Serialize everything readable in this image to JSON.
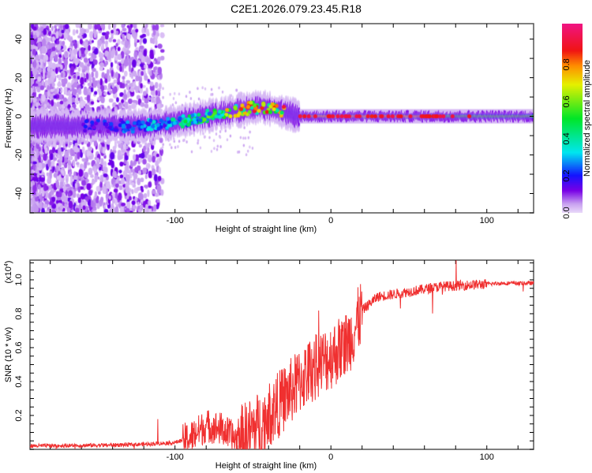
{
  "title": "C2E1.2026.079.23.45.R18",
  "chart_data": [
    {
      "type": "heatmap",
      "xlabel": "Height of straight line (km)",
      "ylabel": "Frequency (Hz)",
      "xlim": [
        -193,
        130
      ],
      "ylim": [
        -50,
        48
      ],
      "xticks": [
        -100,
        0,
        100
      ],
      "yticks": [
        -40,
        -20,
        0,
        20,
        40
      ],
      "ridge": {
        "x": [
          -193,
          -150,
          -120,
          -100,
          -80,
          -60,
          -45,
          -35,
          -20,
          0,
          130
        ],
        "freq": [
          -5,
          -5,
          -5,
          -3,
          0,
          3,
          5,
          3,
          0,
          0,
          0
        ],
        "amplitude": [
          0.15,
          0.2,
          0.3,
          0.4,
          0.55,
          0.75,
          0.9,
          0.85,
          0.9,
          0.9,
          0.7
        ]
      },
      "colorbar": {
        "label": "Normalized spectral amplitude",
        "ticks": [
          0.0,
          0.2,
          0.4,
          0.6,
          0.8
        ],
        "range": [
          0,
          1
        ]
      }
    },
    {
      "type": "line",
      "xlabel": "Height of straight line (km)",
      "ylabel": "SNR (10 * v/v)",
      "yscale_label": "(x10",
      "yscale_exp": "4",
      "xlim": [
        -193,
        130
      ],
      "ylim": [
        0,
        1.116
      ],
      "xticks": [
        -100,
        0,
        100
      ],
      "yticks": [
        0.2,
        0.4,
        0.6,
        0.8,
        1.0
      ],
      "series": [
        {
          "name": "SNR",
          "color": "#f03030",
          "x": [
            -193,
            -140,
            -120,
            -100,
            -90,
            -80,
            -70,
            -60,
            -45,
            -30,
            -15,
            0,
            10,
            15,
            20,
            30,
            50,
            70,
            90,
            110,
            130
          ],
          "y": [
            0.02,
            0.025,
            0.03,
            0.04,
            0.07,
            0.14,
            0.12,
            0.05,
            0.15,
            0.3,
            0.45,
            0.55,
            0.62,
            0.7,
            0.82,
            0.9,
            0.93,
            0.96,
            0.97,
            0.98,
            0.98
          ]
        }
      ]
    }
  ]
}
